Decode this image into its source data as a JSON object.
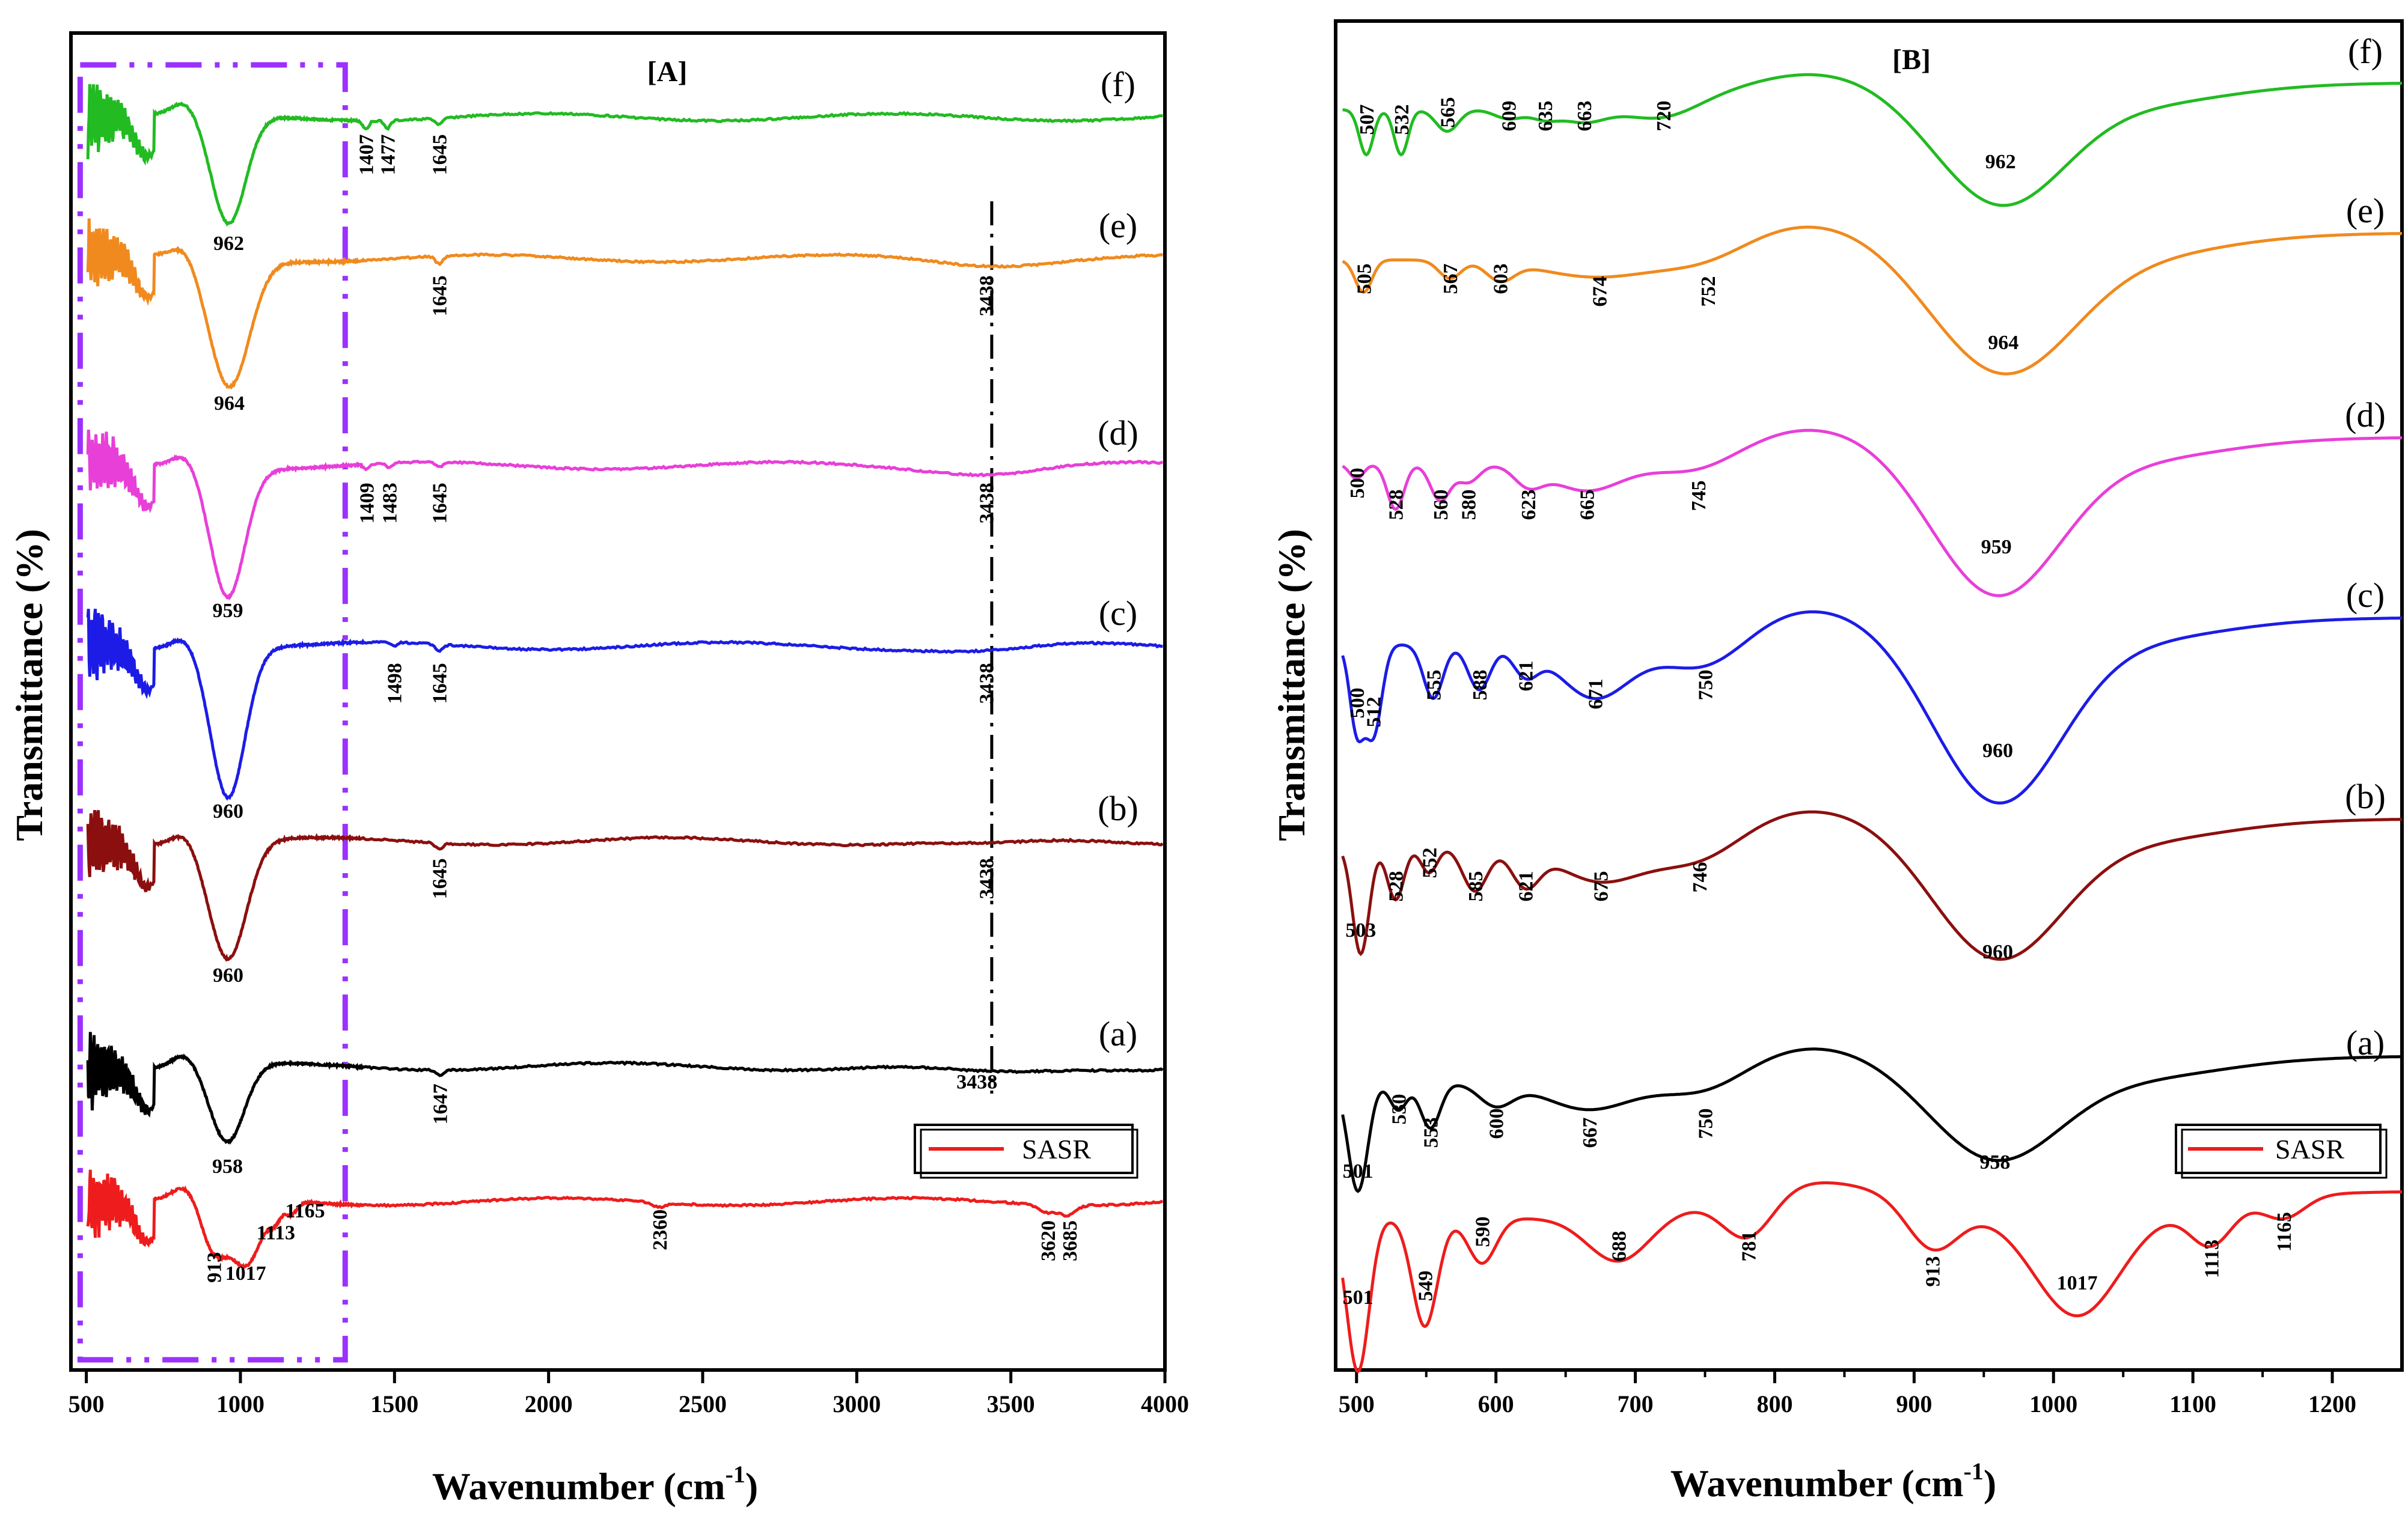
{
  "figure_colors": {
    "f": "#22bb22",
    "e": "#f08a1e",
    "d": "#e83fd8",
    "c": "#1c1ce6",
    "b": "#8b0f0f",
    "a": "#000000",
    "SASR": "#ee1c1c",
    "highlight_box": "#9b30ff"
  },
  "chart_data": [
    {
      "type": "line",
      "panel_title": "[A]",
      "xlabel": "Wavenumber (cm",
      "xlabel_sup": "-1",
      "xlabel_end": ")",
      "ylabel": "Transmittance (%)",
      "xlim": [
        450,
        4000
      ],
      "xticks": [
        500,
        1000,
        1500,
        2000,
        2500,
        3000,
        3500,
        4000
      ],
      "xtick_labels": [
        "500",
        "1000",
        "1500",
        "2000",
        "2500",
        "3000",
        "3500",
        "4000"
      ],
      "reference_line_x": 3438,
      "highlight_region": [
        480,
        1340
      ],
      "legend": [
        "SASR"
      ],
      "legend_position": "bottom-right",
      "series": [
        {
          "name": "(f)",
          "key": "f",
          "baseline": 0.94,
          "peaks": [
            {
              "x": 962,
              "depth": 0.7,
              "width": 55
            },
            {
              "x": 1407,
              "depth": 0.05,
              "width": 10
            },
            {
              "x": 1477,
              "depth": 0.05,
              "width": 10
            },
            {
              "x": 1645,
              "depth": 0.04,
              "width": 12
            }
          ],
          "labels": [
            {
              "text": "962",
              "x": 962,
              "dy": 0.85,
              "rot": 0
            },
            {
              "text": "1407",
              "x": 1407,
              "dy": 0.24,
              "rot": -90
            },
            {
              "text": "1477",
              "x": 1477,
              "dy": 0.24,
              "rot": -90
            },
            {
              "text": "1645",
              "x": 1645,
              "dy": 0.24,
              "rot": -90
            }
          ]
        },
        {
          "name": "(e)",
          "key": "e",
          "baseline": 0.79,
          "peaks": [
            {
              "x": 964,
              "depth": 0.82,
              "width": 65
            },
            {
              "x": 1645,
              "depth": 0.05,
              "width": 12
            },
            {
              "x": 3438,
              "depth": 0.03,
              "width": 160
            }
          ],
          "labels": [
            {
              "text": "964",
              "x": 964,
              "dy": 0.97,
              "rot": 0
            },
            {
              "text": "1645",
              "x": 1645,
              "dy": 0.24,
              "rot": -90
            },
            {
              "text": "3438",
              "x": 3420,
              "dy": 0.24,
              "rot": -90
            }
          ]
        },
        {
          "name": "(d)",
          "key": "d",
          "baseline": 0.645,
          "peaks": [
            {
              "x": 959,
              "depth": 0.82,
              "width": 55
            },
            {
              "x": 1409,
              "depth": 0.03,
              "width": 10
            },
            {
              "x": 1483,
              "depth": 0.03,
              "width": 10
            },
            {
              "x": 1645,
              "depth": 0.03,
              "width": 12
            },
            {
              "x": 3438,
              "depth": 0.04,
              "width": 160
            }
          ],
          "labels": [
            {
              "text": "959",
              "x": 959,
              "dy": 0.97,
              "rot": 0
            },
            {
              "text": "1409",
              "x": 1409,
              "dy": 0.24,
              "rot": -90
            },
            {
              "text": "1483",
              "x": 1483,
              "dy": 0.24,
              "rot": -90
            },
            {
              "text": "1645",
              "x": 1645,
              "dy": 0.24,
              "rot": -90
            },
            {
              "text": "3438",
              "x": 3420,
              "dy": 0.24,
              "rot": -90
            }
          ]
        },
        {
          "name": "(c)",
          "key": "c",
          "baseline": 0.505,
          "peaks": [
            {
              "x": 960,
              "depth": 0.95,
              "width": 55
            },
            {
              "x": 1498,
              "depth": 0.02,
              "width": 10
            },
            {
              "x": 1645,
              "depth": 0.04,
              "width": 12
            },
            {
              "x": 3438,
              "depth": 0.03,
              "width": 160
            }
          ],
          "labels": [
            {
              "text": "960",
              "x": 960,
              "dy": 1.1,
              "rot": 0
            },
            {
              "text": "1498",
              "x": 1498,
              "dy": 0.24,
              "rot": -90
            },
            {
              "text": "1645",
              "x": 1645,
              "dy": 0.24,
              "rot": -90
            },
            {
              "text": "3438",
              "x": 3420,
              "dy": 0.24,
              "rot": -90
            }
          ]
        },
        {
          "name": "(b)",
          "key": "b",
          "baseline": 0.345,
          "peaks": [
            {
              "x": 960,
              "depth": 0.75,
              "width": 60
            },
            {
              "x": 1645,
              "depth": 0.04,
              "width": 12
            },
            {
              "x": 3438,
              "depth": 0.03,
              "width": 160
            }
          ],
          "labels": [
            {
              "text": "960",
              "x": 960,
              "dy": 0.9,
              "rot": 0
            },
            {
              "text": "1645",
              "x": 1645,
              "dy": 0.24,
              "rot": -90
            },
            {
              "text": "3438",
              "x": 3420,
              "dy": 0.24,
              "rot": -90
            }
          ]
        },
        {
          "name": "(a)",
          "key": "a",
          "baseline": 0.185,
          "peaks": [
            {
              "x": 958,
              "depth": 0.5,
              "width": 55
            },
            {
              "x": 1647,
              "depth": 0.03,
              "width": 12
            },
            {
              "x": 3438,
              "depth": 0.05,
              "width": 180
            }
          ],
          "labels": [
            {
              "text": "958",
              "x": 958,
              "dy": 0.68,
              "rot": 0
            },
            {
              "text": "1647",
              "x": 1647,
              "dy": 0.24,
              "rot": -90
            },
            {
              "text": "3438",
              "x": 3390,
              "dy": 0.14,
              "rot": 0
            }
          ]
        },
        {
          "name": "SASR",
          "key": "SASR",
          "baseline": 0.095,
          "peaks": [
            {
              "x": 913,
              "depth": 0.32,
              "width": 40
            },
            {
              "x": 1017,
              "depth": 0.42,
              "width": 50
            },
            {
              "x": 1113,
              "depth": 0.1,
              "width": 20
            },
            {
              "x": 1165,
              "depth": 0.08,
              "width": 18
            },
            {
              "x": 2360,
              "depth": 0.03,
              "width": 20
            },
            {
              "x": 3620,
              "depth": 0.05,
              "width": 30
            },
            {
              "x": 3685,
              "depth": 0.06,
              "width": 25
            }
          ],
          "labels": [
            {
              "text": "913",
              "x": 913,
              "dy": 0.42,
              "rot": -90
            },
            {
              "text": "1017",
              "x": 1017,
              "dy": 0.5,
              "rot": 0
            },
            {
              "text": "1113",
              "x": 1115,
              "dy": 0.24,
              "rot": 0
            },
            {
              "text": "1165",
              "x": 1210,
              "dy": 0.1,
              "rot": 0
            },
            {
              "text": "2360",
              "x": 2360,
              "dy": 0.18,
              "rot": -90
            },
            {
              "text": "3620",
              "x": 3620,
              "dy": 0.25,
              "rot": -90
            },
            {
              "text": "3685",
              "x": 3690,
              "dy": 0.25,
              "rot": -90
            }
          ]
        }
      ]
    },
    {
      "type": "line",
      "panel_title": "[B]",
      "xlabel": "Wavenumber (cm",
      "xlabel_sup": "-1",
      "xlabel_end": ")",
      "ylabel": "Transmittance (%)",
      "xlim": [
        485,
        1250
      ],
      "xticks": [
        500,
        600,
        700,
        800,
        900,
        1000,
        1100,
        1200
      ],
      "xtick_labels": [
        "500",
        "600",
        "700",
        "800",
        "900",
        "1000",
        "1100",
        "1200"
      ],
      "legend": [
        "SASR"
      ],
      "legend_position": "bottom-right",
      "series": [
        {
          "name": "(f)",
          "key": "f",
          "labels": [
            {
              "text": "507",
              "x": 507,
              "dy": 0.23,
              "rot": -90
            },
            {
              "text": "532",
              "x": 532,
              "dy": 0.23,
              "rot": -90
            },
            {
              "text": "565",
              "x": 565,
              "dy": 0.19,
              "rot": -90
            },
            {
              "text": "609",
              "x": 609,
              "dy": 0.21,
              "rot": -90
            },
            {
              "text": "635",
              "x": 635,
              "dy": 0.21,
              "rot": -90
            },
            {
              "text": "663",
              "x": 663,
              "dy": 0.21,
              "rot": -90
            },
            {
              "text": "720",
              "x": 720,
              "dy": 0.21,
              "rot": -90
            },
            {
              "text": "962",
              "x": 962,
              "dy": 0.5,
              "rot": 0
            }
          ]
        },
        {
          "name": "(e)",
          "key": "e",
          "labels": [
            {
              "text": "505",
              "x": 505,
              "dy": 0.23,
              "rot": -90
            },
            {
              "text": "567",
              "x": 567,
              "dy": 0.23,
              "rot": -90
            },
            {
              "text": "603",
              "x": 603,
              "dy": 0.23,
              "rot": -90
            },
            {
              "text": "674",
              "x": 674,
              "dy": 0.3,
              "rot": -90
            },
            {
              "text": "752",
              "x": 752,
              "dy": 0.3,
              "rot": -90
            },
            {
              "text": "964",
              "x": 964,
              "dy": 0.62,
              "rot": 0
            }
          ]
        },
        {
          "name": "(d)",
          "key": "d",
          "labels": [
            {
              "text": "500",
              "x": 500,
              "dy": 0.23,
              "rot": -90
            },
            {
              "text": "528",
              "x": 528,
              "dy": 0.35,
              "rot": -90
            },
            {
              "text": "560",
              "x": 560,
              "dy": 0.35,
              "rot": -90
            },
            {
              "text": "580",
              "x": 580,
              "dy": 0.35,
              "rot": -90
            },
            {
              "text": "623",
              "x": 623,
              "dy": 0.35,
              "rot": -90
            },
            {
              "text": "665",
              "x": 665,
              "dy": 0.35,
              "rot": -90
            },
            {
              "text": "745",
              "x": 745,
              "dy": 0.3,
              "rot": -90
            },
            {
              "text": "959",
              "x": 959,
              "dy": 0.62,
              "rot": 0
            }
          ]
        },
        {
          "name": "(c)",
          "key": "c",
          "labels": [
            {
              "text": "500",
              "x": 500,
              "dy": 0.45,
              "rot": -90
            },
            {
              "text": "512",
              "x": 512,
              "dy": 0.5,
              "rot": -90
            },
            {
              "text": "555",
              "x": 555,
              "dy": 0.35,
              "rot": -90
            },
            {
              "text": "588",
              "x": 588,
              "dy": 0.35,
              "rot": -90
            },
            {
              "text": "621",
              "x": 621,
              "dy": 0.3,
              "rot": -90
            },
            {
              "text": "671",
              "x": 671,
              "dy": 0.4,
              "rot": -90
            },
            {
              "text": "750",
              "x": 750,
              "dy": 0.35,
              "rot": -90
            },
            {
              "text": "960",
              "x": 960,
              "dy": 0.75,
              "rot": 0
            }
          ]
        },
        {
          "name": "(b)",
          "key": "b",
          "labels": [
            {
              "text": "503",
              "x": 503,
              "dy": 0.63,
              "rot": 0
            },
            {
              "text": "528",
              "x": 528,
              "dy": 0.35,
              "rot": -90
            },
            {
              "text": "552",
              "x": 552,
              "dy": 0.22,
              "rot": -90
            },
            {
              "text": "585",
              "x": 585,
              "dy": 0.35,
              "rot": -90
            },
            {
              "text": "621",
              "x": 621,
              "dy": 0.35,
              "rot": -90
            },
            {
              "text": "675",
              "x": 675,
              "dy": 0.35,
              "rot": -90
            },
            {
              "text": "746",
              "x": 746,
              "dy": 0.3,
              "rot": -90
            },
            {
              "text": "960",
              "x": 960,
              "dy": 0.75,
              "rot": 0
            }
          ]
        },
        {
          "name": "(a)",
          "key": "a",
          "labels": [
            {
              "text": "501",
              "x": 501,
              "dy": 0.6,
              "rot": 0
            },
            {
              "text": "530",
              "x": 530,
              "dy": 0.22,
              "rot": -90
            },
            {
              "text": "553",
              "x": 553,
              "dy": 0.35,
              "rot": -90
            },
            {
              "text": "600",
              "x": 600,
              "dy": 0.3,
              "rot": -90
            },
            {
              "text": "667",
              "x": 667,
              "dy": 0.35,
              "rot": -90
            },
            {
              "text": "750",
              "x": 750,
              "dy": 0.3,
              "rot": -90
            },
            {
              "text": "958",
              "x": 958,
              "dy": 0.55,
              "rot": 0
            }
          ]
        },
        {
          "name": "SASR",
          "key": "SASR",
          "labels": [
            {
              "text": "501",
              "x": 501,
              "dy": 0.6,
              "rot": 0
            },
            {
              "text": "549",
              "x": 549,
              "dy": 0.5,
              "rot": -90
            },
            {
              "text": "590",
              "x": 590,
              "dy": 0.2,
              "rot": -90
            },
            {
              "text": "688",
              "x": 688,
              "dy": 0.28,
              "rot": -90
            },
            {
              "text": "781",
              "x": 781,
              "dy": 0.28,
              "rot": -90
            },
            {
              "text": "913",
              "x": 913,
              "dy": 0.42,
              "rot": -90
            },
            {
              "text": "1017",
              "x": 1017,
              "dy": 0.52,
              "rot": 0
            },
            {
              "text": "1113",
              "x": 1113,
              "dy": 0.35,
              "rot": -90
            },
            {
              "text": "1165",
              "x": 1165,
              "dy": 0.2,
              "rot": -90
            }
          ]
        }
      ]
    }
  ]
}
